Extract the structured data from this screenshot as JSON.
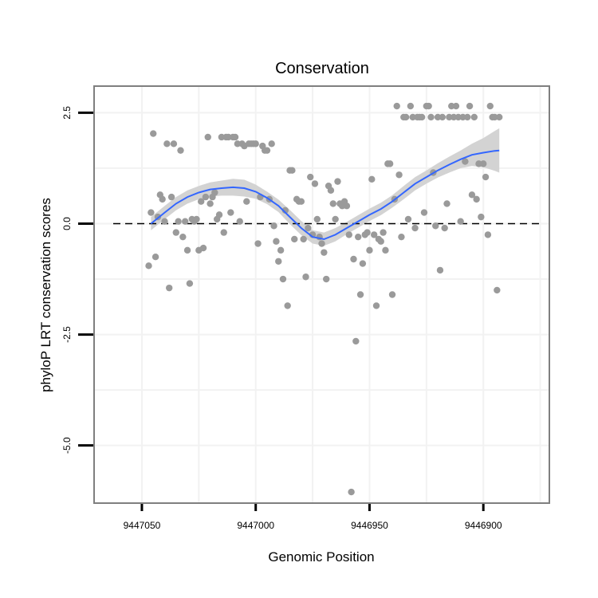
{
  "chart_data": {
    "type": "scatter",
    "title": "Conservation",
    "xlabel": "Genomic Position",
    "ylabel": "phyloP LRT conservation scores",
    "x_reversed": true,
    "xlim": [
      9447071,
      9446871
    ],
    "ylim": [
      -6.3,
      3.1
    ],
    "x_ticks": [
      9447050,
      9447000,
      9446950,
      9446900
    ],
    "y_ticks": [
      -5.0,
      -2.5,
      0.0,
      2.5
    ],
    "reference_line": {
      "y": 0,
      "style": "dashed",
      "color": "#000000"
    },
    "grid": true,
    "colors": {
      "points": "#9a9a9a",
      "smooth": "#3366ff",
      "ribbon": "#d3d3d3",
      "panel_border": "#7f7f7f",
      "grid": "#f2f2f2"
    },
    "series": [
      {
        "kind": "points",
        "points": [
          [
            9447047,
            -0.95
          ],
          [
            9447046,
            0.25
          ],
          [
            9447045,
            2.03
          ],
          [
            9447044,
            -0.75
          ],
          [
            9447043,
            0.15
          ],
          [
            9447042,
            0.65
          ],
          [
            9447041,
            0.55
          ],
          [
            9447040,
            0.05
          ],
          [
            9447039,
            1.8
          ],
          [
            9447038,
            -1.45
          ],
          [
            9447037,
            0.6
          ],
          [
            9447036,
            1.8
          ],
          [
            9447035,
            -0.2
          ],
          [
            9447034,
            0.05
          ],
          [
            9447033,
            1.65
          ],
          [
            9447032,
            -0.3
          ],
          [
            9447031,
            0.05
          ],
          [
            9447030,
            -0.6
          ],
          [
            9447029,
            -1.35
          ],
          [
            9447028,
            0.1
          ],
          [
            9447027,
            0.05
          ],
          [
            9447026,
            0.1
          ],
          [
            9447025,
            -0.6
          ],
          [
            9447024,
            0.5
          ],
          [
            9447023,
            -0.55
          ],
          [
            9447022,
            0.6
          ],
          [
            9447021,
            1.95
          ],
          [
            9447020,
            0.45
          ],
          [
            9447019,
            0.6
          ],
          [
            9447018,
            0.7
          ],
          [
            9447017,
            0.1
          ],
          [
            9447016,
            0.2
          ],
          [
            9447015,
            1.95
          ],
          [
            9447014,
            -0.2
          ],
          [
            9447013,
            1.95
          ],
          [
            9447012,
            1.95
          ],
          [
            9447011,
            0.25
          ],
          [
            9447010,
            1.95
          ],
          [
            9447009,
            1.95
          ],
          [
            9447008,
            1.8
          ],
          [
            9447007,
            0.05
          ],
          [
            9447006,
            1.8
          ],
          [
            9447005,
            1.75
          ],
          [
            9447004,
            0.5
          ],
          [
            9447003,
            1.8
          ],
          [
            9447002,
            1.8
          ],
          [
            9447001,
            1.8
          ],
          [
            9447000,
            1.8
          ],
          [
            9446999,
            -0.45
          ],
          [
            9446998,
            0.6
          ],
          [
            9446997,
            1.75
          ],
          [
            9446996,
            1.65
          ],
          [
            9446995,
            1.65
          ],
          [
            9446994,
            0.55
          ],
          [
            9446993,
            1.8
          ],
          [
            9446992,
            -0.05
          ],
          [
            9446991,
            -0.4
          ],
          [
            9446990,
            -0.85
          ],
          [
            9446989,
            -0.6
          ],
          [
            9446988,
            -1.25
          ],
          [
            9446987,
            0.3
          ],
          [
            9446986,
            -1.85
          ],
          [
            9446985,
            1.2
          ],
          [
            9446984,
            1.2
          ],
          [
            9446983,
            -0.35
          ],
          [
            9446982,
            0.55
          ],
          [
            9446981,
            0.5
          ],
          [
            9446980,
            0.5
          ],
          [
            9446979,
            -0.35
          ],
          [
            9446978,
            -1.2
          ],
          [
            9446977,
            -0.1
          ],
          [
            9446976,
            1.05
          ],
          [
            9446975,
            -0.25
          ],
          [
            9446974,
            0.9
          ],
          [
            9446973,
            0.1
          ],
          [
            9446972,
            -0.3
          ],
          [
            9446971,
            -0.45
          ],
          [
            9446970,
            -0.65
          ],
          [
            9446969,
            -1.25
          ],
          [
            9446968,
            0.85
          ],
          [
            9446967,
            0.75
          ],
          [
            9446966,
            0.45
          ],
          [
            9446965,
            0.1
          ],
          [
            9446964,
            0.95
          ],
          [
            9446963,
            0.45
          ],
          [
            9446962,
            0.4
          ],
          [
            9446961,
            0.5
          ],
          [
            9446960,
            0.4
          ],
          [
            9446959,
            -0.25
          ],
          [
            9446958,
            -6.05
          ],
          [
            9446957,
            -0.8
          ],
          [
            9446956,
            -2.65
          ],
          [
            9446955,
            -0.3
          ],
          [
            9446954,
            -1.6
          ],
          [
            9446953,
            -0.9
          ],
          [
            9446952,
            -0.25
          ],
          [
            9446951,
            -0.2
          ],
          [
            9446950,
            -0.6
          ],
          [
            9446949,
            1.0
          ],
          [
            9446948,
            -0.25
          ],
          [
            9446947,
            -1.85
          ],
          [
            9446946,
            -0.35
          ],
          [
            9446945,
            -0.4
          ],
          [
            9446944,
            -0.2
          ],
          [
            9446943,
            -0.6
          ],
          [
            9446942,
            1.35
          ],
          [
            9446941,
            1.35
          ],
          [
            9446940,
            -1.6
          ],
          [
            9446939,
            0.55
          ],
          [
            9446938,
            2.65
          ],
          [
            9446937,
            1.1
          ],
          [
            9446936,
            -0.3
          ],
          [
            9446935,
            2.4
          ],
          [
            9446934,
            2.4
          ],
          [
            9446933,
            0.1
          ],
          [
            9446932,
            2.65
          ],
          [
            9446931,
            2.4
          ],
          [
            9446930,
            -0.1
          ],
          [
            9446929,
            2.4
          ],
          [
            9446928,
            2.4
          ],
          [
            9446927,
            2.4
          ],
          [
            9446926,
            0.25
          ],
          [
            9446925,
            2.65
          ],
          [
            9446924,
            2.65
          ],
          [
            9446923,
            2.4
          ],
          [
            9446922,
            1.15
          ],
          [
            9446921,
            -0.05
          ],
          [
            9446920,
            2.4
          ],
          [
            9446919,
            -1.05
          ],
          [
            9446918,
            2.4
          ],
          [
            9446917,
            -0.1
          ],
          [
            9446916,
            0.45
          ],
          [
            9446915,
            2.4
          ],
          [
            9446914,
            2.65
          ],
          [
            9446913,
            2.4
          ],
          [
            9446912,
            2.65
          ],
          [
            9446911,
            2.4
          ],
          [
            9446910,
            0.05
          ],
          [
            9446909,
            2.4
          ],
          [
            9446908,
            1.4
          ],
          [
            9446907,
            2.4
          ],
          [
            9446906,
            2.65
          ],
          [
            9446905,
            0.65
          ],
          [
            9446904,
            2.4
          ],
          [
            9446903,
            0.55
          ],
          [
            9446902,
            1.35
          ],
          [
            9446901,
            0.15
          ],
          [
            9446900,
            1.35
          ],
          [
            9446899,
            1.05
          ],
          [
            9446898,
            -0.25
          ],
          [
            9446897,
            2.65
          ],
          [
            9446896,
            2.4
          ],
          [
            9446895,
            2.4
          ],
          [
            9446894,
            -1.5
          ],
          [
            9446893,
            2.4
          ]
        ]
      },
      {
        "kind": "smooth",
        "points": [
          [
            9447046,
            0.0
          ],
          [
            9447040,
            0.25
          ],
          [
            9447035,
            0.45
          ],
          [
            9447030,
            0.6
          ],
          [
            9447025,
            0.7
          ],
          [
            9447020,
            0.77
          ],
          [
            9447015,
            0.8
          ],
          [
            9447010,
            0.82
          ],
          [
            9447005,
            0.8
          ],
          [
            9447000,
            0.72
          ],
          [
            9446995,
            0.58
          ],
          [
            9446990,
            0.4
          ],
          [
            9446985,
            0.15
          ],
          [
            9446980,
            -0.1
          ],
          [
            9446975,
            -0.3
          ],
          [
            9446970,
            -0.35
          ],
          [
            9446965,
            -0.25
          ],
          [
            9446960,
            -0.1
          ],
          [
            9446955,
            0.05
          ],
          [
            9446950,
            0.2
          ],
          [
            9446945,
            0.33
          ],
          [
            9446940,
            0.5
          ],
          [
            9446935,
            0.7
          ],
          [
            9446930,
            0.9
          ],
          [
            9446925,
            1.05
          ],
          [
            9446920,
            1.2
          ],
          [
            9446915,
            1.33
          ],
          [
            9446910,
            1.45
          ],
          [
            9446905,
            1.55
          ],
          [
            9446900,
            1.6
          ],
          [
            9446895,
            1.64
          ],
          [
            9446893,
            1.65
          ]
        ],
        "ribbon_halfwidth": [
          0.15,
          0.15,
          0.15,
          0.15,
          0.15,
          0.16,
          0.17,
          0.19,
          0.19,
          0.16,
          0.14,
          0.14,
          0.16,
          0.16,
          0.15,
          0.15,
          0.15,
          0.14,
          0.14,
          0.14,
          0.14,
          0.14,
          0.15,
          0.15,
          0.15,
          0.16,
          0.18,
          0.2,
          0.25,
          0.33,
          0.45,
          0.5
        ]
      }
    ]
  }
}
